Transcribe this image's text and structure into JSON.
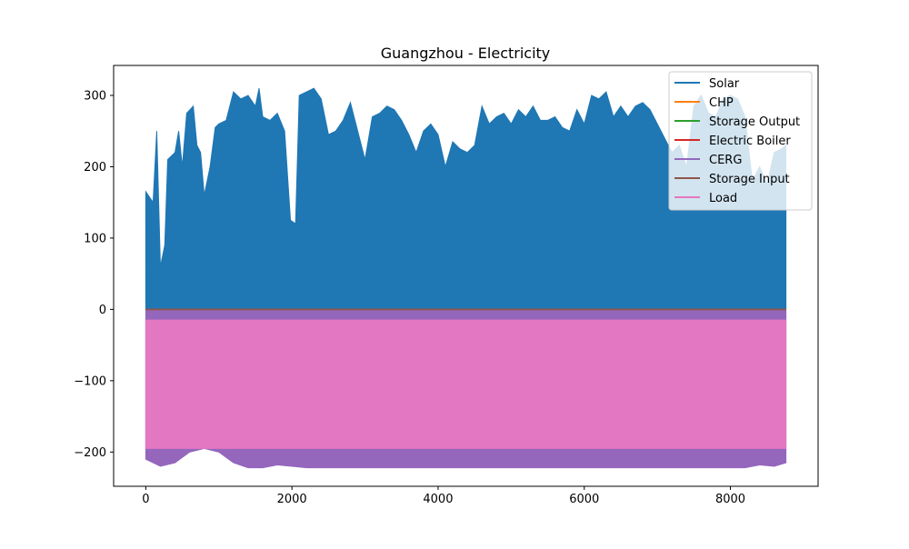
{
  "chart_data": {
    "type": "area",
    "title": "Guangzhou - Electricity",
    "xlabel": "",
    "ylabel": "",
    "xlim": [
      -440,
      9200
    ],
    "ylim": [
      -248,
      342
    ],
    "xticks": [
      0,
      2000,
      4000,
      6000,
      8000
    ],
    "xtick_labels": [
      "0",
      "2000",
      "4000",
      "6000",
      "8000"
    ],
    "yticks": [
      -200,
      -100,
      0,
      100,
      200,
      300
    ],
    "ytick_labels": [
      "−200",
      "−100",
      "0",
      "100",
      "200",
      "300"
    ],
    "grid": false,
    "legend_position": "top-right",
    "series": [
      {
        "name": "Solar",
        "color": "#1f77b4",
        "description": "Upper envelope of daily solar peaks (hour of year vs. power)",
        "x": [
          0,
          100,
          150,
          200,
          260,
          300,
          400,
          450,
          500,
          560,
          650,
          700,
          750,
          800,
          880,
          950,
          1000,
          1100,
          1200,
          1300,
          1400,
          1500,
          1550,
          1600,
          1700,
          1800,
          1900,
          1980,
          2050,
          2100,
          2200,
          2300,
          2400,
          2500,
          2600,
          2700,
          2800,
          2900,
          3000,
          3100,
          3200,
          3300,
          3400,
          3500,
          3600,
          3700,
          3800,
          3900,
          4000,
          4100,
          4200,
          4300,
          4400,
          4500,
          4600,
          4700,
          4800,
          4900,
          5000,
          5100,
          5200,
          5300,
          5400,
          5500,
          5600,
          5700,
          5800,
          5900,
          6000,
          6100,
          6200,
          6300,
          6400,
          6500,
          6600,
          6700,
          6800,
          6900,
          7000,
          7100,
          7200,
          7300,
          7400,
          7500,
          7600,
          7700,
          7800,
          7900,
          8000,
          8100,
          8200,
          8300,
          8400,
          8500,
          8600,
          8700,
          8760
        ],
        "values": [
          165,
          150,
          250,
          60,
          90,
          210,
          220,
          250,
          200,
          275,
          285,
          230,
          220,
          160,
          200,
          255,
          260,
          265,
          305,
          295,
          300,
          285,
          310,
          270,
          265,
          275,
          250,
          125,
          120,
          300,
          305,
          310,
          295,
          245,
          250,
          265,
          290,
          250,
          210,
          270,
          275,
          285,
          280,
          265,
          245,
          220,
          250,
          260,
          245,
          200,
          235,
          225,
          220,
          230,
          285,
          260,
          270,
          275,
          260,
          280,
          270,
          285,
          265,
          265,
          270,
          255,
          250,
          280,
          260,
          300,
          295,
          305,
          270,
          285,
          270,
          285,
          290,
          280,
          260,
          240,
          220,
          230,
          200,
          285,
          300,
          275,
          270,
          295,
          300,
          295,
          270,
          180,
          200,
          175,
          220,
          225,
          230
        ]
      },
      {
        "name": "CHP",
        "color": "#ff7f0e",
        "x": [
          0,
          8760
        ],
        "values": [
          0,
          0
        ]
      },
      {
        "name": "Storage Output",
        "color": "#2ca02c",
        "x": [
          0,
          8760
        ],
        "values": [
          0,
          0
        ]
      },
      {
        "name": "Electric Boiler",
        "color": "#d62728",
        "x": [
          0,
          8760
        ],
        "values": [
          0,
          0
        ]
      },
      {
        "name": "CERG",
        "color": "#9467bd",
        "description": "Lower envelope of daily minimum (negative) values",
        "x": [
          0,
          200,
          400,
          600,
          800,
          1000,
          1200,
          1400,
          1600,
          1800,
          2000,
          2200,
          2400,
          2600,
          2800,
          3000,
          3200,
          3400,
          3600,
          3800,
          4000,
          4200,
          4400,
          4600,
          4800,
          5000,
          5200,
          5400,
          5600,
          5800,
          6000,
          6200,
          6400,
          6600,
          6800,
          7000,
          7200,
          7400,
          7600,
          7800,
          8000,
          8200,
          8400,
          8600,
          8760
        ],
        "values": [
          -210,
          -220,
          -215,
          -200,
          -195,
          -200,
          -215,
          -222,
          -222,
          -218,
          -220,
          -222,
          -222,
          -222,
          -222,
          -222,
          -222,
          -222,
          -222,
          -222,
          -222,
          -222,
          -222,
          -222,
          -222,
          -222,
          -222,
          -222,
          -222,
          -222,
          -222,
          -222,
          -222,
          -222,
          -222,
          -222,
          -222,
          -222,
          -222,
          -222,
          -222,
          -222,
          -218,
          -220,
          -215
        ]
      },
      {
        "name": "Storage Input",
        "color": "#8c564b",
        "x": [
          0,
          8760
        ],
        "values": [
          0,
          0
        ]
      },
      {
        "name": "Load",
        "color": "#e377c2",
        "description": "Load band drawn as negative values (upper and lower envelope)",
        "x": [
          0,
          8760
        ],
        "upper": [
          -15,
          -15
        ],
        "lower": [
          -195,
          -195
        ]
      }
    ]
  }
}
